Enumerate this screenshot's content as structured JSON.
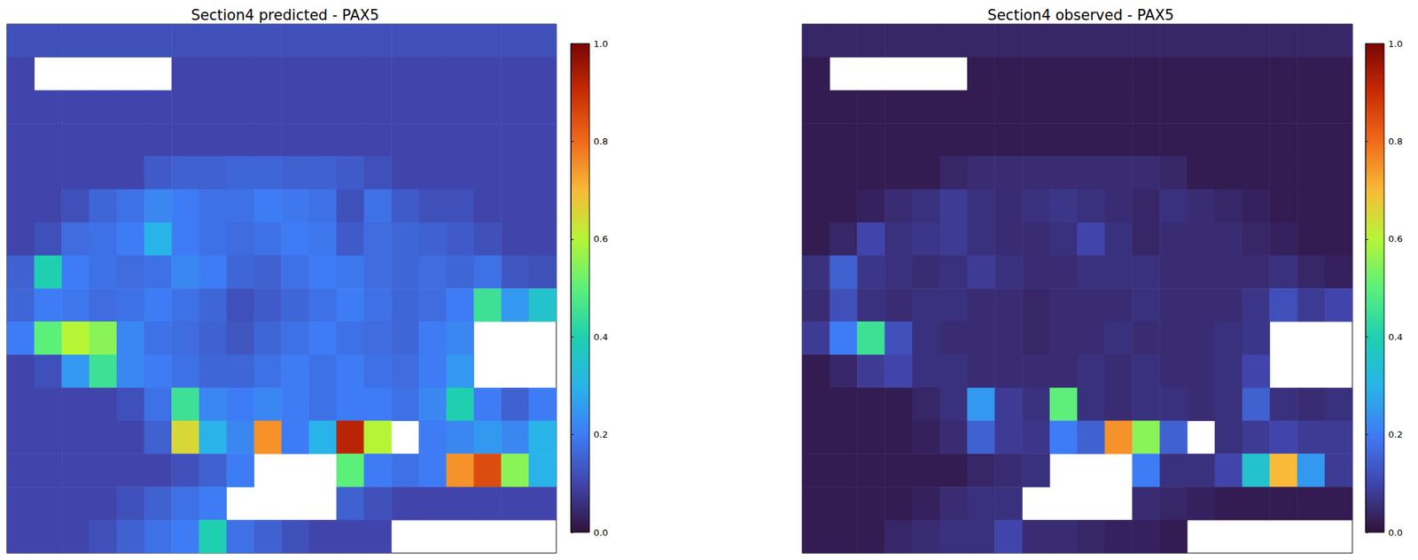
{
  "chart_data": [
    {
      "type": "heatmap",
      "title": "Section4 predicted - PAX5",
      "tick_labels": false,
      "colorbar_range": [
        0,
        1
      ],
      "colorbar_ticks": [
        {
          "value": 0,
          "label": "0.0"
        },
        0.2,
        0.4,
        0.6,
        0.8,
        {
          "value": 1,
          "label": "1.0"
        }
      ],
      "cells": [
        [
          0.12,
          0.12,
          0.12,
          0.12,
          0.12,
          0.12,
          0.12,
          0.12,
          0.12,
          0.12,
          0.12,
          0.12,
          0.12,
          0.12,
          0.12,
          0.12,
          0.12,
          0.12,
          0.12,
          0.12
        ],
        [
          0.1,
          null,
          null,
          null,
          null,
          null,
          0.1,
          0.1,
          0.1,
          0.1,
          0.1,
          0.1,
          0.1,
          0.1,
          0.1,
          0.1,
          0.1,
          0.1,
          0.1,
          0.1
        ],
        [
          0.1,
          0.1,
          0.1,
          0.1,
          0.1,
          0.1,
          0.1,
          0.1,
          0.1,
          0.1,
          0.1,
          0.1,
          0.1,
          0.1,
          0.1,
          0.1,
          0.1,
          0.1,
          0.1,
          0.1
        ],
        [
          0.1,
          0.1,
          0.1,
          0.1,
          0.1,
          0.1,
          0.1,
          0.1,
          0.1,
          0.1,
          0.1,
          0.1,
          0.1,
          0.1,
          0.1,
          0.1,
          0.1,
          0.1,
          0.1,
          0.1
        ],
        [
          0.1,
          0.1,
          0.1,
          0.1,
          0.1,
          0.14,
          0.15,
          0.15,
          0.16,
          0.16,
          0.15,
          0.15,
          0.14,
          0.12,
          0.1,
          0.1,
          0.1,
          0.1,
          0.1,
          0.1
        ],
        [
          0.1,
          0.1,
          0.12,
          0.16,
          0.18,
          0.22,
          0.2,
          0.18,
          0.18,
          0.2,
          0.19,
          0.18,
          0.12,
          0.18,
          0.14,
          0.12,
          0.12,
          0.1,
          0.1,
          0.1
        ],
        [
          0.1,
          0.12,
          0.17,
          0.18,
          0.2,
          0.3,
          0.2,
          0.18,
          0.17,
          0.18,
          0.2,
          0.19,
          0.14,
          0.17,
          0.16,
          0.15,
          0.14,
          0.12,
          0.1,
          0.1
        ],
        [
          0.15,
          0.4,
          0.2,
          0.18,
          0.17,
          0.18,
          0.22,
          0.2,
          0.16,
          0.15,
          0.18,
          0.2,
          0.19,
          0.17,
          0.16,
          0.17,
          0.16,
          0.18,
          0.13,
          0.12
        ],
        [
          0.16,
          0.2,
          0.19,
          0.17,
          0.18,
          0.2,
          0.18,
          0.16,
          0.12,
          0.14,
          0.16,
          0.18,
          0.2,
          0.18,
          0.16,
          0.17,
          0.2,
          0.45,
          0.25,
          0.35
        ],
        [
          0.2,
          0.5,
          0.6,
          0.55,
          0.22,
          0.18,
          0.17,
          0.15,
          0.13,
          0.16,
          0.18,
          0.2,
          0.18,
          0.17,
          0.16,
          0.2,
          0.22,
          null,
          null,
          null
        ],
        [
          0.1,
          0.12,
          0.25,
          0.45,
          0.22,
          0.2,
          0.18,
          0.16,
          0.16,
          0.18,
          0.2,
          0.18,
          0.2,
          0.18,
          0.17,
          0.2,
          0.25,
          null,
          null,
          null
        ],
        [
          0.1,
          0.1,
          0.1,
          0.1,
          0.12,
          0.18,
          0.45,
          0.22,
          0.2,
          0.22,
          0.2,
          0.18,
          0.2,
          0.2,
          0.18,
          0.22,
          0.4,
          0.2,
          0.15,
          0.2
        ],
        [
          0.1,
          0.1,
          0.1,
          0.1,
          0.1,
          0.15,
          0.65,
          0.3,
          0.22,
          0.75,
          0.2,
          0.3,
          0.92,
          0.6,
          null,
          0.2,
          0.22,
          0.25,
          0.22,
          0.3
        ],
        [
          0.1,
          0.1,
          0.1,
          0.1,
          0.1,
          0.1,
          0.12,
          0.15,
          0.2,
          null,
          null,
          null,
          0.5,
          0.2,
          0.18,
          0.2,
          0.75,
          0.85,
          0.55,
          0.3
        ],
        [
          0.1,
          0.1,
          0.1,
          0.1,
          0.12,
          0.15,
          0.18,
          0.2,
          null,
          null,
          null,
          null,
          0.15,
          0.12,
          0.1,
          0.1,
          0.1,
          0.1,
          0.1,
          0.1
        ],
        [
          0.1,
          0.1,
          0.1,
          0.12,
          0.15,
          0.18,
          0.2,
          0.4,
          0.18,
          0.15,
          0.12,
          0.1,
          0.1,
          0.1,
          null,
          null,
          null,
          null,
          null,
          null
        ]
      ]
    },
    {
      "type": "heatmap",
      "title": "Section4 observed - PAX5",
      "tick_labels": false,
      "colorbar_range": [
        0,
        1
      ],
      "colorbar_ticks": [
        {
          "value": 0,
          "label": "0.0"
        },
        0.2,
        0.4,
        0.6,
        0.8,
        {
          "value": 1,
          "label": "1.0"
        }
      ],
      "cells": [
        [
          0.04,
          0.04,
          0.04,
          0.04,
          0.04,
          0.04,
          0.04,
          0.04,
          0.04,
          0.04,
          0.04,
          0.04,
          0.04,
          0.04,
          0.04,
          0.04,
          0.04,
          0.04,
          0.04,
          0.04
        ],
        [
          0.02,
          null,
          null,
          null,
          null,
          null,
          0.02,
          0.02,
          0.02,
          0.02,
          0.02,
          0.02,
          0.02,
          0.02,
          0.02,
          0.02,
          0.02,
          0.02,
          0.02,
          0.02
        ],
        [
          0.02,
          0.02,
          0.02,
          0.02,
          0.02,
          0.02,
          0.02,
          0.02,
          0.02,
          0.02,
          0.02,
          0.02,
          0.02,
          0.02,
          0.02,
          0.02,
          0.02,
          0.02,
          0.02,
          0.02
        ],
        [
          0.02,
          0.02,
          0.02,
          0.02,
          0.02,
          0.02,
          0.02,
          0.02,
          0.02,
          0.02,
          0.02,
          0.02,
          0.02,
          0.02,
          0.02,
          0.02,
          0.02,
          0.02,
          0.02,
          0.02
        ],
        [
          0.02,
          0.02,
          0.02,
          0.02,
          0.02,
          0.04,
          0.05,
          0.05,
          0.05,
          0.05,
          0.05,
          0.05,
          0.05,
          0.04,
          0.02,
          0.02,
          0.02,
          0.02,
          0.02,
          0.02
        ],
        [
          0.02,
          0.02,
          0.03,
          0.05,
          0.06,
          0.08,
          0.06,
          0.05,
          0.06,
          0.07,
          0.06,
          0.05,
          0.04,
          0.06,
          0.05,
          0.04,
          0.03,
          0.02,
          0.02,
          0.02
        ],
        [
          0.02,
          0.04,
          0.1,
          0.06,
          0.07,
          0.08,
          0.06,
          0.05,
          0.05,
          0.06,
          0.1,
          0.06,
          0.04,
          0.05,
          0.05,
          0.05,
          0.04,
          0.03,
          0.02,
          0.02
        ],
        [
          0.06,
          0.15,
          0.07,
          0.06,
          0.05,
          0.06,
          0.08,
          0.06,
          0.05,
          0.05,
          0.06,
          0.06,
          0.06,
          0.05,
          0.05,
          0.05,
          0.05,
          0.06,
          0.04,
          0.03
        ],
        [
          0.05,
          0.12,
          0.06,
          0.05,
          0.06,
          0.06,
          0.05,
          0.05,
          0.04,
          0.05,
          0.05,
          0.05,
          0.06,
          0.05,
          0.05,
          0.05,
          0.07,
          0.12,
          0.08,
          0.1
        ],
        [
          0.08,
          0.2,
          0.45,
          0.12,
          0.06,
          0.05,
          0.05,
          0.05,
          0.04,
          0.05,
          0.05,
          0.06,
          0.05,
          0.05,
          0.05,
          0.06,
          0.07,
          null,
          null,
          null
        ],
        [
          0.02,
          0.04,
          0.08,
          0.1,
          0.06,
          0.06,
          0.05,
          0.05,
          0.05,
          0.05,
          0.06,
          0.05,
          0.06,
          0.05,
          0.05,
          0.06,
          0.1,
          null,
          null,
          null
        ],
        [
          0.02,
          0.02,
          0.02,
          0.02,
          0.04,
          0.06,
          0.25,
          0.08,
          0.06,
          0.5,
          0.06,
          0.05,
          0.06,
          0.06,
          0.05,
          0.06,
          0.15,
          0.06,
          0.05,
          0.06
        ],
        [
          0.02,
          0.02,
          0.02,
          0.02,
          0.03,
          0.05,
          0.15,
          0.08,
          0.07,
          0.2,
          0.15,
          0.75,
          0.55,
          0.15,
          null,
          0.06,
          0.08,
          0.1,
          0.08,
          0.08
        ],
        [
          0.02,
          0.02,
          0.02,
          0.02,
          0.02,
          0.02,
          0.04,
          0.05,
          0.06,
          null,
          null,
          null,
          0.2,
          0.06,
          0.06,
          0.1,
          0.35,
          0.7,
          0.25,
          0.08
        ],
        [
          0.02,
          0.02,
          0.02,
          0.02,
          0.03,
          0.05,
          0.06,
          0.06,
          null,
          null,
          null,
          null,
          0.05,
          0.04,
          0.03,
          0.02,
          0.02,
          0.02,
          0.02,
          0.02
        ],
        [
          0.02,
          0.02,
          0.02,
          0.04,
          0.05,
          0.06,
          0.06,
          0.1,
          0.05,
          0.05,
          0.04,
          0.03,
          0.03,
          0.02,
          null,
          null,
          null,
          null,
          null,
          null
        ]
      ]
    }
  ]
}
